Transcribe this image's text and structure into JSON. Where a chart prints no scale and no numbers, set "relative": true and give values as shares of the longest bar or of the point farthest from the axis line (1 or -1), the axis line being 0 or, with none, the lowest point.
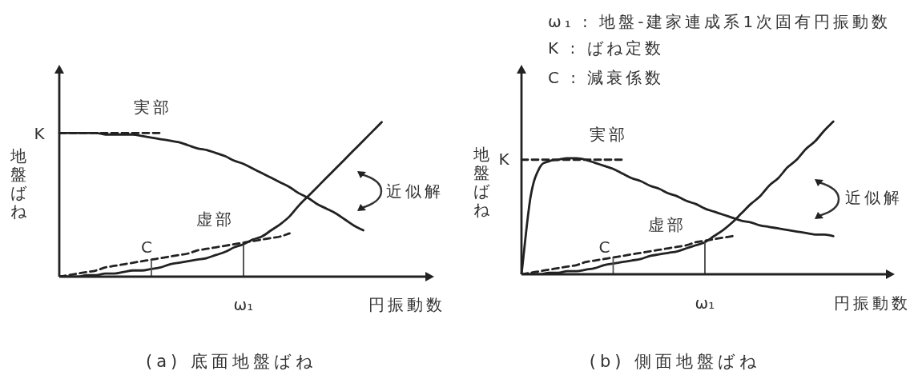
{
  "chart_data": [
    {
      "type": "line",
      "title": "(a) 底面地盤ばね",
      "xlabel": "円振動数",
      "ylabel": "地盤ばね",
      "relative": true,
      "marker": "none",
      "categories": [
        null,
        null,
        null,
        null,
        null,
        null,
        null,
        null,
        null,
        null,
        null,
        null,
        null,
        null,
        null,
        null,
        null,
        null,
        null,
        null,
        null,
        null,
        null,
        null,
        null,
        null,
        null,
        null,
        null,
        null,
        null,
        null,
        null,
        null,
        null,
        null,
        null,
        null,
        null,
        null,
        null
      ],
      "series": [
        {
          "name": "実部",
          "color": "#222222",
          "values": [
            0.93,
            0.93,
            0.93,
            0.93,
            0.93,
            0.92,
            0.92,
            0.92,
            0.92,
            0.91,
            0.9,
            0.89,
            0.88,
            0.87,
            0.85,
            0.83,
            0.82,
            0.8,
            0.78,
            0.75,
            0.73,
            0.7,
            0.67,
            0.64,
            0.61,
            0.58,
            0.54,
            0.51,
            0.47,
            0.44,
            0.41,
            0.37,
            0.33,
            0.3,
            null,
            null,
            null,
            null,
            null,
            null,
            null
          ]
        },
        {
          "name": "K",
          "color": "#222222",
          "line_style": "dashed",
          "values": [
            0.93,
            0.93,
            0.93,
            0.93,
            0.93,
            0.93,
            0.93,
            0.93,
            0.93,
            0.93,
            0.93,
            0.93,
            null,
            null,
            null,
            null,
            null,
            null,
            null,
            null,
            null,
            null,
            null,
            null,
            null,
            null,
            null,
            null,
            null,
            null,
            null,
            null,
            null,
            null,
            null,
            null,
            null,
            null,
            null,
            null,
            null
          ]
        },
        {
          "name": "虚部",
          "color": "#222222",
          "values": [
            0,
            0,
            0,
            0.01,
            0.01,
            0.02,
            0.02,
            0.03,
            0.04,
            0.04,
            0.05,
            0.06,
            0.08,
            0.09,
            0.1,
            0.11,
            0.12,
            0.14,
            0.16,
            0.19,
            0.21,
            0.24,
            0.26,
            0.3,
            0.34,
            0.39,
            0.46,
            0.52,
            0.58,
            0.64,
            0.7,
            0.76,
            0.82,
            0.88,
            0.94,
            1,
            null,
            null,
            null,
            null,
            null
          ]
        },
        {
          "name": "C",
          "color": "#222222",
          "line_style": "dashed",
          "values": [
            0,
            0.01,
            0.02,
            0.03,
            0.04,
            0.06,
            0.07,
            0.08,
            0.09,
            0.1,
            0.11,
            0.12,
            0.13,
            0.14,
            0.15,
            0.17,
            0.18,
            0.19,
            0.2,
            0.21,
            0.22,
            0.23,
            0.24,
            0.25,
            0.26,
            0.28,
            null,
            null,
            null,
            null,
            null,
            null,
            null,
            null,
            null,
            null,
            null,
            null,
            null,
            null,
            null
          ]
        }
      ],
      "annotations": [
        "ω₁",
        "近似解"
      ]
    },
    {
      "type": "line",
      "title": "(b) 側面地盤ばね",
      "xlabel": "円振動数",
      "ylabel": "地盤ばね",
      "relative": true,
      "marker": "none",
      "categories": [
        null,
        null,
        null,
        null,
        null,
        null,
        null,
        null,
        null,
        null,
        null,
        null,
        null,
        null,
        null,
        null,
        null,
        null,
        null,
        null,
        null,
        null,
        null,
        null,
        null,
        null,
        null,
        null,
        null,
        null,
        null,
        null,
        null,
        null,
        null,
        null,
        null,
        null,
        null,
        null,
        null
      ],
      "series": [
        {
          "name": "実部",
          "color": "#222222",
          "values": [
            0,
            0.51,
            0.7,
            0.74,
            0.75,
            0.76,
            0.76,
            0.75,
            0.73,
            0.71,
            0.69,
            0.66,
            0.63,
            0.61,
            0.58,
            0.56,
            0.53,
            0.51,
            0.48,
            0.46,
            0.43,
            0.41,
            0.39,
            0.37,
            0.35,
            0.34,
            0.32,
            0.31,
            0.3,
            0.29,
            0.28,
            0.27,
            0.26,
            0.26,
            0.25,
            null,
            null,
            null,
            null,
            null,
            null
          ]
        },
        {
          "name": "K",
          "color": "#222222",
          "line_style": "dashed",
          "values": [
            0.75,
            0.75,
            0.75,
            0.75,
            0.75,
            0.75,
            0.75,
            0.75,
            0.75,
            0.75,
            0.75,
            0.75,
            null,
            null,
            null,
            null,
            null,
            null,
            null,
            null,
            null,
            null,
            null,
            null,
            null,
            null,
            null,
            null,
            null,
            null,
            null,
            null,
            null,
            null,
            null,
            null,
            null,
            null,
            null,
            null,
            null
          ]
        },
        {
          "name": "虚部",
          "color": "#222222",
          "values": [
            0,
            0,
            0,
            0.01,
            0.01,
            0.02,
            0.02,
            0.03,
            0.04,
            0.06,
            0.07,
            0.08,
            0.09,
            0.1,
            0.12,
            0.13,
            0.14,
            0.15,
            0.17,
            0.19,
            0.21,
            0.25,
            0.29,
            0.34,
            0.4,
            0.46,
            0.51,
            0.58,
            0.63,
            0.7,
            0.75,
            0.82,
            0.87,
            0.94,
            1,
            null,
            null,
            null,
            null,
            null,
            null
          ]
        },
        {
          "name": "C",
          "color": "#222222",
          "line_style": "dashed",
          "values": [
            0,
            0.01,
            0.02,
            0.03,
            0.04,
            0.05,
            0.06,
            0.08,
            0.09,
            0.1,
            0.11,
            0.12,
            0.13,
            0.14,
            0.15,
            0.16,
            0.17,
            0.18,
            0.19,
            0.21,
            0.22,
            0.23,
            0.24,
            0.25,
            null,
            null,
            null,
            null,
            null,
            null,
            null,
            null,
            null,
            null,
            null,
            null,
            null,
            null,
            null,
            null,
            null
          ]
        }
      ],
      "annotations": [
        "ω₁",
        "近似解",
        "ω₁ : 地盤-建家連成系1次固有円振動数",
        "K : ばね定数",
        "C : 減衰係数"
      ]
    }
  ]
}
